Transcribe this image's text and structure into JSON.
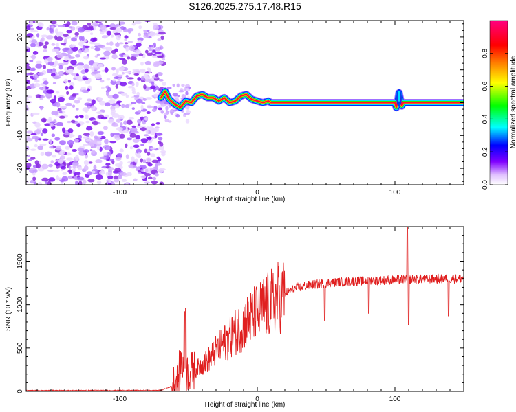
{
  "figure_title": "S126.2025.275.17.48.R15",
  "colors": {
    "snr_line": "#e02020",
    "ridge": "#ff1030",
    "speckle": "#8a2be2",
    "axis": "#000000"
  },
  "chart_data": [
    {
      "type": "heatmap",
      "title": "S126.2025.275.17.48.R15",
      "xlabel": "Height of straight line (km)",
      "ylabel": "Frequency (Hz)",
      "xlim": [
        -168,
        150
      ],
      "ylim": [
        -25,
        25
      ],
      "x_ticks": [
        -100,
        0,
        100
      ],
      "y_ticks": [
        -20,
        -10,
        0,
        10,
        20
      ],
      "colorbar": {
        "label": "Normalized spectral amplitude",
        "range": [
          0,
          1
        ],
        "ticks": [
          0.0,
          0.2,
          0.4,
          0.6,
          0.8
        ],
        "colormap": [
          "#ffffff",
          "#e0c0ff",
          "#8000ff",
          "#0000ff",
          "#00ffff",
          "#00ff00",
          "#ffff00",
          "#ff8000",
          "#ff0000",
          "#ff0080"
        ]
      },
      "noise_region_km": [
        -168,
        -70
      ],
      "ridge": {
        "x": [
          -70,
          -67,
          -64,
          -60,
          -56,
          -52,
          -48,
          -44,
          -40,
          -36,
          -32,
          -28,
          -24,
          -20,
          -16,
          -12,
          -8,
          -4,
          0,
          4,
          8,
          10,
          20,
          40,
          60,
          80,
          100,
          101,
          102,
          103,
          104,
          105,
          106,
          110,
          130,
          150
        ],
        "y": [
          1.5,
          3.5,
          1.0,
          -0.5,
          -1.5,
          0.5,
          0.0,
          2.0,
          2.5,
          1.5,
          1.5,
          0.5,
          1.5,
          0.0,
          0.5,
          2.0,
          2.5,
          1.0,
          0.5,
          0.0,
          0.5,
          0.0,
          0.0,
          0.0,
          0.0,
          0.0,
          0.0,
          -1.5,
          0.5,
          3.0,
          1.0,
          -1.0,
          0.0,
          0.0,
          0.0,
          0.0
        ],
        "peak_amplitude": 0.95
      }
    },
    {
      "type": "line",
      "title": "",
      "xlabel": "Height of straight line (km)",
      "ylabel": "SNR (10 * v/v)",
      "xlim": [
        -168,
        150
      ],
      "ylim": [
        0,
        1900
      ],
      "x_ticks": [
        -100,
        0,
        100
      ],
      "y_ticks": [
        0,
        500,
        1000,
        1500
      ],
      "envelope": {
        "x": [
          -168,
          -70,
          -62,
          -58,
          -55,
          -52,
          -48,
          -44,
          -40,
          -36,
          -32,
          -28,
          -24,
          -20,
          -16,
          -12,
          -8,
          -4,
          0,
          5,
          10,
          15,
          20,
          25,
          30,
          40,
          50,
          60,
          70,
          80,
          90,
          100,
          110,
          120,
          130,
          140,
          150
        ],
        "y": [
          10,
          12,
          60,
          150,
          350,
          220,
          230,
          260,
          310,
          360,
          430,
          500,
          560,
          630,
          690,
          740,
          800,
          850,
          900,
          960,
          1020,
          1080,
          1130,
          1170,
          1200,
          1230,
          1250,
          1260,
          1270,
          1275,
          1280,
          1285,
          1290,
          1295,
          1295,
          1300,
          1300
        ]
      },
      "spikes": [
        {
          "x": -52,
          "y": 960
        },
        {
          "x": -53,
          "y": 920
        },
        {
          "x": 49,
          "y": 820
        },
        {
          "x": 81,
          "y": 900
        },
        {
          "x": 109,
          "y": 1900
        },
        {
          "x": 110,
          "y": 770
        },
        {
          "x": 139,
          "y": 870
        }
      ]
    }
  ]
}
